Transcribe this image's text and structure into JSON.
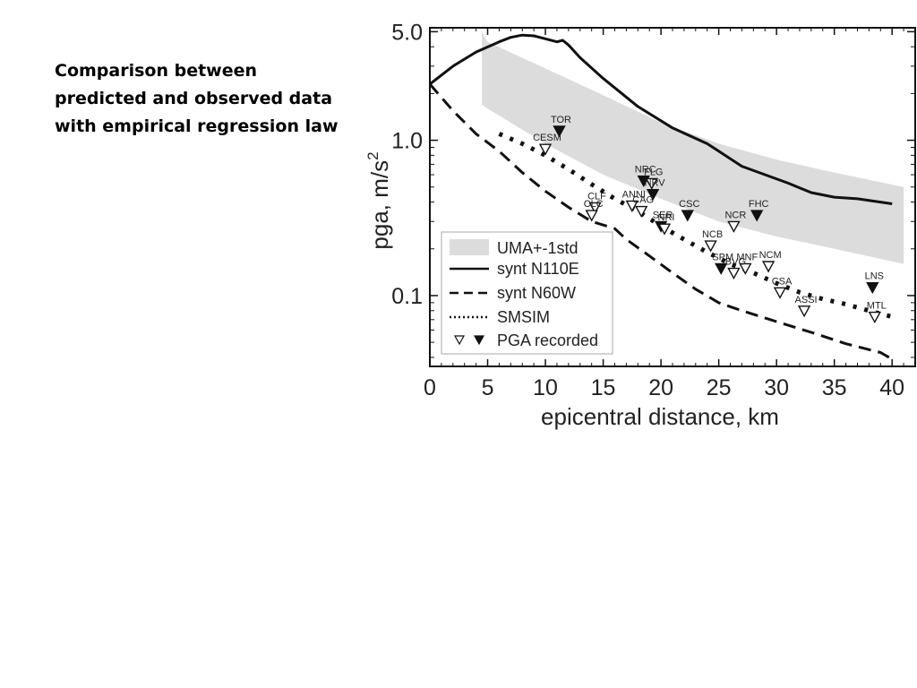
{
  "caption": {
    "line1": "Comparison between",
    "line2": "predicted and observed data",
    "line3": "with empirical regression law"
  },
  "chart_data": {
    "type": "line",
    "xlabel": "epicentral distance, km",
    "ylabel": "pga, m/s",
    "ylabel_sup": "2",
    "xlim": [
      0,
      42
    ],
    "ylim": [
      0.035,
      5.3
    ],
    "yscale": "log",
    "x_ticks": [
      0,
      5,
      10,
      15,
      20,
      25,
      30,
      35,
      40
    ],
    "y_ticks": [
      {
        "value": 5.0,
        "label": "5.0"
      },
      {
        "value": 1.0,
        "label": "1.0"
      },
      {
        "value": 0.1,
        "label": "0.1"
      }
    ],
    "legend": {
      "position": "bottom-left",
      "entries": [
        "UMA+-1std",
        "synt N110E",
        "synt N60W",
        "SMSIM",
        "PGA recorded"
      ]
    },
    "band": {
      "name": "UMA+-1std",
      "color": "#dcdcdc",
      "x": [
        4.5,
        5,
        10,
        15,
        20,
        25,
        30,
        35,
        41
      ],
      "upper": [
        5.0,
        4.3,
        2.9,
        1.95,
        1.3,
        0.95,
        0.75,
        0.62,
        0.5
      ],
      "lower": [
        1.7,
        1.6,
        0.95,
        0.6,
        0.42,
        0.3,
        0.24,
        0.2,
        0.16
      ]
    },
    "series": [
      {
        "name": "synt N110E",
        "style": "solid",
        "x": [
          0,
          2,
          4,
          6,
          7,
          8,
          9,
          10,
          11,
          11.5,
          12,
          13,
          15,
          18,
          21,
          24,
          25,
          27,
          29,
          31,
          33,
          35,
          37,
          39,
          40
        ],
        "y": [
          2.3,
          3.0,
          3.7,
          4.3,
          4.6,
          4.75,
          4.7,
          4.5,
          4.3,
          4.4,
          4.1,
          3.4,
          2.5,
          1.65,
          1.2,
          0.95,
          0.85,
          0.68,
          0.6,
          0.53,
          0.46,
          0.43,
          0.42,
          0.4,
          0.39
        ]
      },
      {
        "name": "synt N60W",
        "style": "dashed",
        "x": [
          0,
          2,
          4,
          6,
          8,
          10,
          12,
          14,
          16,
          17,
          19,
          21,
          23,
          25,
          27,
          30,
          33,
          36,
          39,
          40
        ],
        "y": [
          2.3,
          1.55,
          1.1,
          0.85,
          0.62,
          0.47,
          0.37,
          0.3,
          0.27,
          0.23,
          0.18,
          0.14,
          0.11,
          0.09,
          0.08,
          0.068,
          0.058,
          0.049,
          0.043,
          0.039
        ]
      },
      {
        "name": "SMSIM",
        "style": "dotted",
        "x": [
          6,
          8,
          10,
          12,
          14,
          16,
          18,
          20,
          22,
          24,
          26,
          28,
          30,
          32,
          34,
          36,
          38,
          40
        ],
        "y": [
          1.1,
          0.95,
          0.8,
          0.65,
          0.52,
          0.42,
          0.35,
          0.28,
          0.23,
          0.19,
          0.16,
          0.14,
          0.12,
          0.105,
          0.095,
          0.088,
          0.08,
          0.073
        ]
      }
    ],
    "stations": [
      {
        "name": "TOR",
        "x": 11.2,
        "y": 1.15,
        "filled": true
      },
      {
        "name": "CESM",
        "x": 10.0,
        "y": 0.88,
        "filled": false
      },
      {
        "name": "NRC",
        "x": 18.5,
        "y": 0.55,
        "filled": true
      },
      {
        "name": "FLG",
        "x": 19.2,
        "y": 0.53,
        "filled": false
      },
      {
        "name": "NRV",
        "x": 19.3,
        "y": 0.45,
        "filled": true
      },
      {
        "name": "ANNI",
        "x": 17.5,
        "y": 0.38,
        "filled": false
      },
      {
        "name": "CAG",
        "x": 18.3,
        "y": 0.35,
        "filled": false
      },
      {
        "name": "CLF",
        "x": 14.3,
        "y": 0.37,
        "filled": false
      },
      {
        "name": "CLC",
        "x": 14.0,
        "y": 0.33,
        "filled": false
      },
      {
        "name": "CSC",
        "x": 22.3,
        "y": 0.33,
        "filled": true
      },
      {
        "name": "FHC",
        "x": 28.3,
        "y": 0.33,
        "filled": true
      },
      {
        "name": "SER",
        "x": 20.0,
        "y": 0.28,
        "filled": true
      },
      {
        "name": "NRI",
        "x": 20.3,
        "y": 0.27,
        "filled": false
      },
      {
        "name": "NCR",
        "x": 26.3,
        "y": 0.28,
        "filled": false
      },
      {
        "name": "NCB",
        "x": 24.3,
        "y": 0.21,
        "filled": false
      },
      {
        "name": "SPM",
        "x": 25.2,
        "y": 0.15,
        "filled": true
      },
      {
        "name": "MNF",
        "x": 27.3,
        "y": 0.15,
        "filled": false
      },
      {
        "name": "NCM",
        "x": 29.3,
        "y": 0.155,
        "filled": false
      },
      {
        "name": "BVG",
        "x": 26.3,
        "y": 0.14,
        "filled": false
      },
      {
        "name": "CSA",
        "x": 30.3,
        "y": 0.105,
        "filled": false
      },
      {
        "name": "ASSI",
        "x": 32.4,
        "y": 0.08,
        "filled": false
      },
      {
        "name": "LNS",
        "x": 38.3,
        "y": 0.113,
        "filled": true
      },
      {
        "name": "MTL",
        "x": 38.5,
        "y": 0.073,
        "filled": false
      }
    ]
  }
}
